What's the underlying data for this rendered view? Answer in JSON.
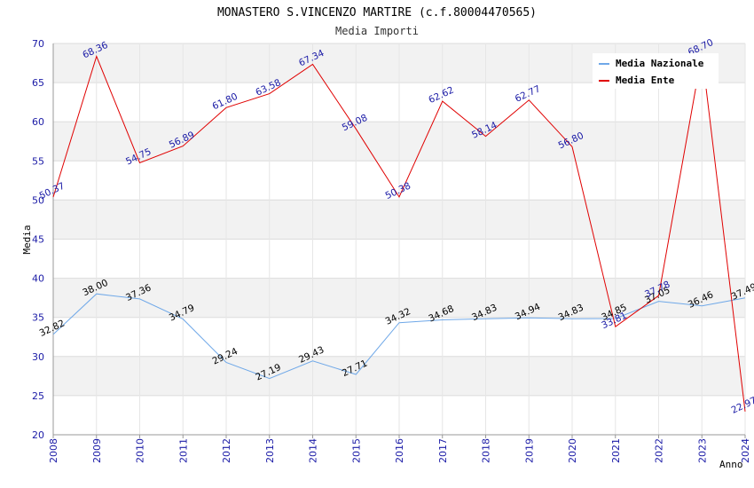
{
  "chart_data": {
    "type": "line",
    "title": "MONASTERO S.VINCENZO MARTIRE (c.f.80004470565)",
    "subtitle": "Media Importi",
    "xlabel": "Anno",
    "ylabel": "Media",
    "ylim": [
      20,
      70
    ],
    "yticks": [
      "20",
      "25",
      "30",
      "35",
      "40",
      "45",
      "50",
      "55",
      "60",
      "65",
      "70"
    ],
    "grid": true,
    "legend_position": "top-right",
    "categories": [
      "2008",
      "2009",
      "2010",
      "2011",
      "2012",
      "2013",
      "2014",
      "2015",
      "2016",
      "2017",
      "2018",
      "2019",
      "2020",
      "2021",
      "2022",
      "2023",
      "2024"
    ],
    "series": [
      {
        "name": "Media Nazionale",
        "color": "#6fa8e8",
        "label_color": "#000000",
        "values": [
          32.82,
          38.0,
          37.36,
          34.79,
          29.24,
          27.19,
          29.43,
          27.71,
          34.32,
          34.68,
          34.83,
          34.94,
          34.83,
          34.85,
          37.05,
          36.46,
          37.49
        ],
        "labels": [
          "32.82",
          "38.00",
          "37.36",
          "34.79",
          "29.24",
          "27.19",
          "29.43",
          "27.71",
          "34.32",
          "34.68",
          "34.83",
          "34.94",
          "34.83",
          "34.85",
          "37.05",
          "36.46",
          "37.49"
        ]
      },
      {
        "name": "Media Ente",
        "color": "#e00000",
        "label_color": "#1a1aa6",
        "values": [
          50.37,
          68.36,
          54.75,
          56.89,
          61.8,
          63.58,
          67.34,
          59.08,
          50.38,
          62.62,
          58.14,
          62.77,
          56.8,
          33.81,
          37.78,
          68.7,
          22.97
        ],
        "labels": [
          "50.37",
          "68.36",
          "54.75",
          "56.89",
          "61.80",
          "63.58",
          "67.34",
          "59.08",
          "50.38",
          "62.62",
          "58.14",
          "62.77",
          "56.80",
          "33.81",
          "37.78",
          "68.70",
          "22.97"
        ]
      }
    ]
  }
}
